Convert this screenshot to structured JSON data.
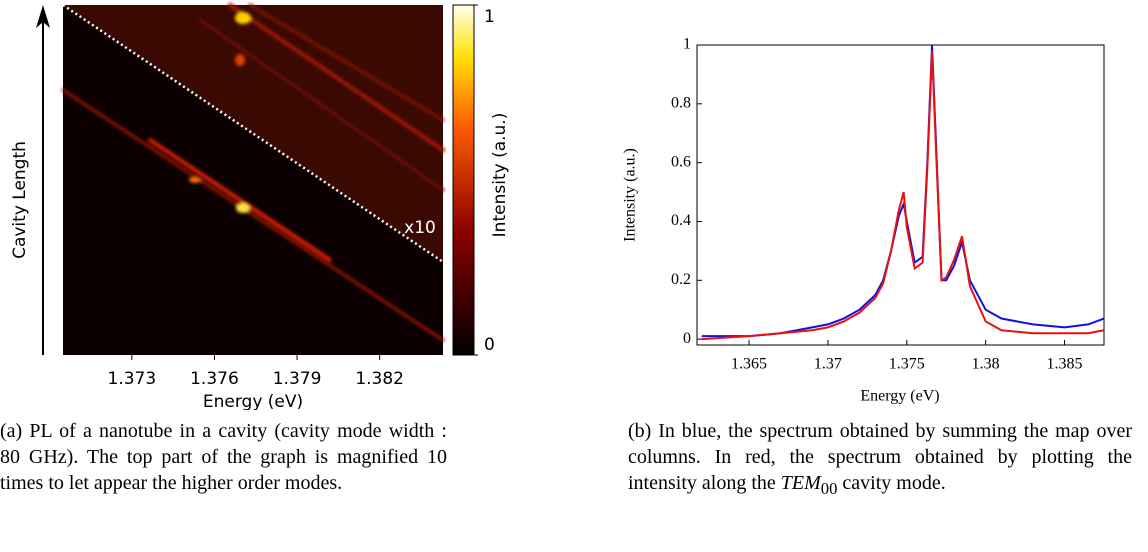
{
  "chart_data": [
    {
      "type": "heatmap",
      "xlabel": "Energy (eV)",
      "ylabel": "Cavity  Length",
      "colorbar_label": "Intensity (a.u.)",
      "annotation": "x10",
      "xlim": [
        1.3705,
        1.3843
      ],
      "xticks": [
        1.373,
        1.376,
        1.379,
        1.382
      ],
      "clim": [
        0,
        1
      ],
      "cticks": [
        0,
        1
      ]
    },
    {
      "type": "line",
      "xlabel": "Energy (eV)",
      "ylabel": "Intensity (a.u.)",
      "xlim": [
        1.3617,
        1.3875
      ],
      "ylim": [
        -0.02,
        1.0
      ],
      "xticks": [
        1.365,
        1.37,
        1.375,
        1.38,
        1.385
      ],
      "yticks": [
        0,
        0.2,
        0.4,
        0.6,
        0.8,
        1
      ],
      "x": [
        1.362,
        1.365,
        1.367,
        1.369,
        1.37,
        1.371,
        1.372,
        1.373,
        1.3735,
        1.374,
        1.3745,
        1.3748,
        1.375,
        1.3755,
        1.376,
        1.3763,
        1.3766,
        1.3769,
        1.3772,
        1.3775,
        1.378,
        1.3785,
        1.379,
        1.38,
        1.381,
        1.383,
        1.385,
        1.3865,
        1.3875
      ],
      "series": [
        {
          "name": "summed spectrum",
          "color": "#1010e0",
          "values": [
            0.01,
            0.01,
            0.02,
            0.04,
            0.05,
            0.07,
            0.1,
            0.15,
            0.2,
            0.3,
            0.42,
            0.46,
            0.4,
            0.26,
            0.28,
            0.6,
            1.0,
            0.6,
            0.2,
            0.2,
            0.25,
            0.33,
            0.2,
            0.1,
            0.07,
            0.05,
            0.04,
            0.05,
            0.07
          ]
        },
        {
          "name": "TEM00 spectrum",
          "color": "#e81010",
          "values": [
            0.0,
            0.01,
            0.02,
            0.03,
            0.04,
            0.06,
            0.09,
            0.14,
            0.19,
            0.3,
            0.44,
            0.5,
            0.38,
            0.24,
            0.26,
            0.58,
            0.98,
            0.58,
            0.2,
            0.21,
            0.27,
            0.35,
            0.18,
            0.06,
            0.03,
            0.02,
            0.02,
            0.02,
            0.03
          ]
        }
      ]
    }
  ],
  "caption_a": "(a) PL of a nanotube in a cavity (cavity mode width : 80 GHz). The top part of the graph is magnified 10 times to let appear the higher order modes.",
  "caption_b": {
    "text": "(b) In blue, the spectrum obtained by summing the map over columns. In red, the spectrum obtained by plotting the intensity along the ",
    "math": "TEM",
    "subscript": "00",
    "end": " cavity mode."
  }
}
